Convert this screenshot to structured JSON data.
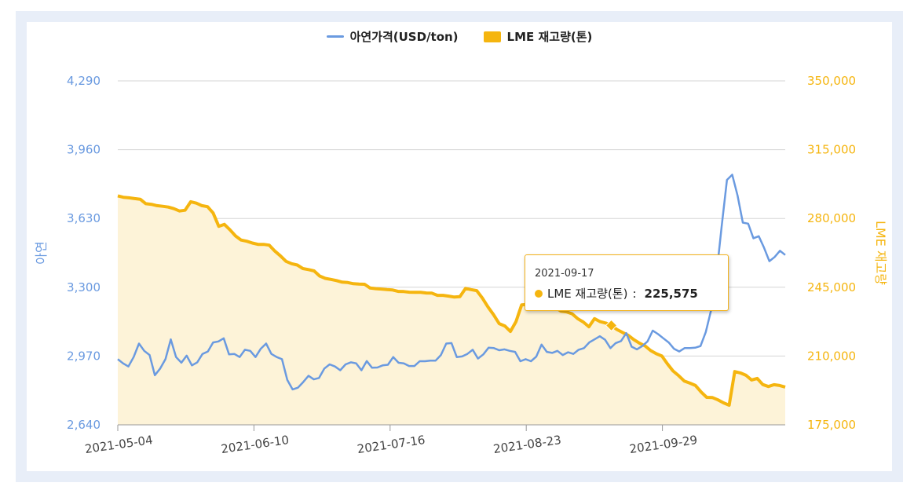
{
  "colors": {
    "zinc": "#6a9ae0",
    "inventory": "#f5b50f",
    "inventory_fill": "#fdf3d8",
    "grid": "#d6d6d6"
  },
  "legend": {
    "zinc": "아연가격(USD/ton)",
    "inventory": "LME 재고량(톤)"
  },
  "tooltip": {
    "date": "2021-09-17",
    "series": "LME 재고량(톤)",
    "value": "225,575"
  },
  "chart_data": {
    "type": "line",
    "x_labels": [
      "2021-05-04",
      "2021-06-10",
      "2021-07-16",
      "2021-08-23",
      "2021-09-29"
    ],
    "y_left": {
      "label": "아연",
      "ticks": [
        "4,290",
        "3,960",
        "3,630",
        "3,300",
        "2,970",
        "2,640"
      ],
      "range": [
        2640,
        4290
      ]
    },
    "y_right": {
      "label": "LME 재고량",
      "ticks": [
        "350,000",
        "315,000",
        "280,000",
        "245,000",
        "210,000",
        "175,000"
      ],
      "range": [
        175000,
        350000
      ]
    },
    "series": [
      {
        "name": "아연가격(USD/ton)",
        "axis": "left",
        "values": [
          2955,
          2935,
          2920,
          2965,
          3030,
          2995,
          2975,
          2878,
          2910,
          2955,
          3050,
          2965,
          2938,
          2972,
          2925,
          2940,
          2980,
          2992,
          3035,
          3040,
          3055,
          2978,
          2980,
          2965,
          3000,
          2995,
          2965,
          3005,
          3030,
          2980,
          2965,
          2955,
          2855,
          2810,
          2818,
          2845,
          2875,
          2858,
          2865,
          2910,
          2930,
          2920,
          2902,
          2930,
          2940,
          2935,
          2902,
          2946,
          2914,
          2915,
          2925,
          2928,
          2965,
          2938,
          2935,
          2922,
          2922,
          2945,
          2945,
          2948,
          2948,
          2975,
          3030,
          3032,
          2965,
          2968,
          2980,
          3000,
          2958,
          2978,
          3010,
          3008,
          2998,
          3002,
          2995,
          2990,
          2945,
          2955,
          2945,
          2967,
          3025,
          2990,
          2985,
          2995,
          2975,
          2988,
          2980,
          3000,
          3008,
          3035,
          3050,
          3065,
          3048,
          3008,
          3032,
          3042,
          3080,
          3015,
          3002,
          3018,
          3040,
          3092,
          3075,
          3055,
          3035,
          3005,
          2992,
          3008,
          3008,
          3010,
          3018,
          3085,
          3190,
          3355,
          3590,
          3815,
          3840,
          3740,
          3610,
          3605,
          3535,
          3545,
          3490,
          3425,
          3445,
          3475,
          3455
        ]
      },
      {
        "name": "LME 재고량(톤)",
        "axis": "right",
        "values": [
          291500,
          290800,
          290500,
          290100,
          289800,
          287500,
          287200,
          286500,
          286200,
          285800,
          285000,
          283800,
          284200,
          288500,
          287800,
          286500,
          286000,
          282800,
          276000,
          277000,
          274200,
          271100,
          269000,
          268400,
          267500,
          266800,
          266800,
          266400,
          263400,
          261000,
          258200,
          257000,
          256300,
          254500,
          254000,
          253300,
          250700,
          249500,
          249000,
          248400,
          247600,
          247400,
          246800,
          246600,
          246500,
          244600,
          244300,
          244100,
          243800,
          243600,
          242900,
          242800,
          242500,
          242400,
          242400,
          242100,
          242000,
          240900,
          240900,
          240500,
          240000,
          240200,
          244400,
          243800,
          243300,
          239500,
          235000,
          231000,
          226500,
          225300,
          222500,
          227500,
          236000,
          236200,
          236000,
          235300,
          235300,
          234900,
          234900,
          232800,
          232500,
          231500,
          229000,
          227300,
          224900,
          229000,
          227500,
          226800,
          225575,
          223500,
          222000,
          220600,
          218400,
          216600,
          215200,
          212800,
          211200,
          210000,
          206000,
          202400,
          200000,
          197300,
          196200,
          195000,
          191700,
          189000,
          188900,
          187700,
          186200,
          185000,
          202100,
          201400,
          200200,
          197800,
          198600,
          195500,
          194500,
          195400,
          195000,
          194200
        ]
      }
    ]
  }
}
